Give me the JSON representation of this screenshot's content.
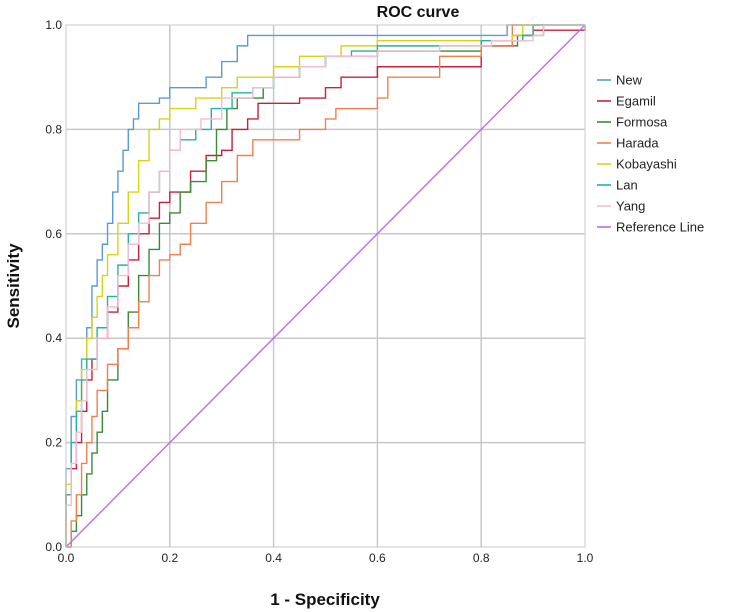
{
  "chart_data": {
    "type": "line",
    "title": "ROC curve",
    "xlabel": "1 - Specificity",
    "ylabel": "Sensitivity",
    "xlim": [
      0,
      1
    ],
    "ylim": [
      0,
      1
    ],
    "x_ticks": [
      "0.0",
      "0.2",
      "0.4",
      "0.6",
      "0.8",
      "1.0"
    ],
    "y_ticks": [
      "0.0",
      "0.2",
      "0.4",
      "0.6",
      "0.8",
      "1.0"
    ],
    "grid": true,
    "legend_position": "right",
    "series": [
      {
        "name": "New",
        "color": "#5b9bd5",
        "points": [
          [
            0,
            0
          ],
          [
            0,
            0.15
          ],
          [
            0.01,
            0.25
          ],
          [
            0.02,
            0.32
          ],
          [
            0.03,
            0.36
          ],
          [
            0.04,
            0.42
          ],
          [
            0.05,
            0.5
          ],
          [
            0.06,
            0.55
          ],
          [
            0.07,
            0.58
          ],
          [
            0.08,
            0.62
          ],
          [
            0.09,
            0.68
          ],
          [
            0.1,
            0.72
          ],
          [
            0.11,
            0.76
          ],
          [
            0.12,
            0.8
          ],
          [
            0.13,
            0.82
          ],
          [
            0.14,
            0.85
          ],
          [
            0.18,
            0.86
          ],
          [
            0.2,
            0.88
          ],
          [
            0.25,
            0.88
          ],
          [
            0.27,
            0.9
          ],
          [
            0.3,
            0.93
          ],
          [
            0.33,
            0.96
          ],
          [
            0.35,
            0.98
          ],
          [
            0.84,
            0.98
          ],
          [
            0.85,
            1.0
          ],
          [
            1.0,
            1.0
          ]
        ]
      },
      {
        "name": "Egamil",
        "color": "#c8203c",
        "points": [
          [
            0,
            0
          ],
          [
            0,
            0.1
          ],
          [
            0.01,
            0.15
          ],
          [
            0.02,
            0.2
          ],
          [
            0.03,
            0.26
          ],
          [
            0.04,
            0.32
          ],
          [
            0.05,
            0.36
          ],
          [
            0.06,
            0.4
          ],
          [
            0.08,
            0.45
          ],
          [
            0.1,
            0.5
          ],
          [
            0.12,
            0.55
          ],
          [
            0.14,
            0.6
          ],
          [
            0.16,
            0.63
          ],
          [
            0.18,
            0.66
          ],
          [
            0.2,
            0.68
          ],
          [
            0.24,
            0.72
          ],
          [
            0.27,
            0.75
          ],
          [
            0.3,
            0.76
          ],
          [
            0.32,
            0.8
          ],
          [
            0.35,
            0.82
          ],
          [
            0.37,
            0.85
          ],
          [
            0.45,
            0.86
          ],
          [
            0.5,
            0.88
          ],
          [
            0.53,
            0.9
          ],
          [
            0.6,
            0.92
          ],
          [
            0.8,
            0.96
          ],
          [
            0.86,
            0.98
          ],
          [
            0.9,
            0.99
          ],
          [
            1.0,
            1.0
          ]
        ]
      },
      {
        "name": "Formosa",
        "color": "#3a8a3a",
        "points": [
          [
            0,
            0
          ],
          [
            0.01,
            0.03
          ],
          [
            0.02,
            0.06
          ],
          [
            0.03,
            0.1
          ],
          [
            0.04,
            0.14
          ],
          [
            0.05,
            0.18
          ],
          [
            0.06,
            0.22
          ],
          [
            0.07,
            0.26
          ],
          [
            0.08,
            0.32
          ],
          [
            0.1,
            0.38
          ],
          [
            0.12,
            0.45
          ],
          [
            0.14,
            0.52
          ],
          [
            0.16,
            0.57
          ],
          [
            0.18,
            0.62
          ],
          [
            0.2,
            0.64
          ],
          [
            0.22,
            0.68
          ],
          [
            0.24,
            0.7
          ],
          [
            0.27,
            0.74
          ],
          [
            0.29,
            0.8
          ],
          [
            0.31,
            0.84
          ],
          [
            0.33,
            0.86
          ],
          [
            0.38,
            0.88
          ],
          [
            0.4,
            0.9
          ],
          [
            0.45,
            0.92
          ],
          [
            0.5,
            0.94
          ],
          [
            0.6,
            0.95
          ],
          [
            0.8,
            0.96
          ],
          [
            0.87,
            0.98
          ],
          [
            0.92,
            1.0
          ],
          [
            1.0,
            1.0
          ]
        ]
      },
      {
        "name": "Harada",
        "color": "#f08050",
        "points": [
          [
            0,
            0
          ],
          [
            0.01,
            0.05
          ],
          [
            0.02,
            0.1
          ],
          [
            0.03,
            0.16
          ],
          [
            0.04,
            0.2
          ],
          [
            0.05,
            0.25
          ],
          [
            0.06,
            0.3
          ],
          [
            0.08,
            0.35
          ],
          [
            0.1,
            0.38
          ],
          [
            0.12,
            0.42
          ],
          [
            0.14,
            0.47
          ],
          [
            0.16,
            0.52
          ],
          [
            0.18,
            0.55
          ],
          [
            0.2,
            0.56
          ],
          [
            0.22,
            0.58
          ],
          [
            0.24,
            0.62
          ],
          [
            0.27,
            0.66
          ],
          [
            0.3,
            0.7
          ],
          [
            0.33,
            0.75
          ],
          [
            0.36,
            0.78
          ],
          [
            0.45,
            0.8
          ],
          [
            0.5,
            0.82
          ],
          [
            0.52,
            0.84
          ],
          [
            0.6,
            0.86
          ],
          [
            0.62,
            0.9
          ],
          [
            0.72,
            0.94
          ],
          [
            0.8,
            0.96
          ],
          [
            0.86,
            1.0
          ],
          [
            1.0,
            1.0
          ]
        ]
      },
      {
        "name": "Kobayashi",
        "color": "#d4d418",
        "points": [
          [
            0,
            0
          ],
          [
            0,
            0.12
          ],
          [
            0.01,
            0.2
          ],
          [
            0.02,
            0.28
          ],
          [
            0.03,
            0.34
          ],
          [
            0.04,
            0.4
          ],
          [
            0.05,
            0.44
          ],
          [
            0.06,
            0.48
          ],
          [
            0.07,
            0.52
          ],
          [
            0.08,
            0.56
          ],
          [
            0.1,
            0.62
          ],
          [
            0.12,
            0.68
          ],
          [
            0.14,
            0.74
          ],
          [
            0.16,
            0.8
          ],
          [
            0.18,
            0.82
          ],
          [
            0.2,
            0.84
          ],
          [
            0.25,
            0.86
          ],
          [
            0.3,
            0.88
          ],
          [
            0.33,
            0.9
          ],
          [
            0.4,
            0.92
          ],
          [
            0.45,
            0.94
          ],
          [
            0.53,
            0.96
          ],
          [
            0.6,
            0.97
          ],
          [
            0.86,
            0.98
          ],
          [
            0.88,
            1.0
          ],
          [
            1.0,
            1.0
          ]
        ]
      },
      {
        "name": "Lan",
        "color": "#22b2a6",
        "points": [
          [
            0,
            0
          ],
          [
            0,
            0.1
          ],
          [
            0.01,
            0.2
          ],
          [
            0.02,
            0.26
          ],
          [
            0.03,
            0.32
          ],
          [
            0.04,
            0.36
          ],
          [
            0.06,
            0.42
          ],
          [
            0.08,
            0.48
          ],
          [
            0.1,
            0.54
          ],
          [
            0.12,
            0.6
          ],
          [
            0.14,
            0.64
          ],
          [
            0.16,
            0.68
          ],
          [
            0.18,
            0.72
          ],
          [
            0.2,
            0.76
          ],
          [
            0.22,
            0.78
          ],
          [
            0.25,
            0.8
          ],
          [
            0.28,
            0.84
          ],
          [
            0.32,
            0.87
          ],
          [
            0.36,
            0.88
          ],
          [
            0.4,
            0.9
          ],
          [
            0.45,
            0.92
          ],
          [
            0.5,
            0.94
          ],
          [
            0.55,
            0.95
          ],
          [
            0.6,
            0.96
          ],
          [
            0.8,
            0.97
          ],
          [
            0.88,
            0.98
          ],
          [
            0.9,
            1.0
          ],
          [
            1.0,
            1.0
          ]
        ]
      },
      {
        "name": "Yang",
        "color": "#f4bcd4",
        "points": [
          [
            0,
            0
          ],
          [
            0,
            0.08
          ],
          [
            0.01,
            0.16
          ],
          [
            0.02,
            0.22
          ],
          [
            0.03,
            0.28
          ],
          [
            0.04,
            0.34
          ],
          [
            0.06,
            0.4
          ],
          [
            0.08,
            0.46
          ],
          [
            0.1,
            0.52
          ],
          [
            0.12,
            0.58
          ],
          [
            0.14,
            0.62
          ],
          [
            0.16,
            0.68
          ],
          [
            0.18,
            0.72
          ],
          [
            0.2,
            0.76
          ],
          [
            0.22,
            0.8
          ],
          [
            0.26,
            0.82
          ],
          [
            0.3,
            0.86
          ],
          [
            0.36,
            0.88
          ],
          [
            0.4,
            0.9
          ],
          [
            0.45,
            0.92
          ],
          [
            0.5,
            0.94
          ],
          [
            0.6,
            0.95
          ],
          [
            0.72,
            0.96
          ],
          [
            0.82,
            0.97
          ],
          [
            0.9,
            0.98
          ],
          [
            0.92,
            1.0
          ],
          [
            1.0,
            1.0
          ]
        ]
      },
      {
        "name": "Reference Line",
        "color": "#b66ff0",
        "points": [
          [
            0,
            0
          ],
          [
            1,
            1
          ]
        ]
      }
    ]
  }
}
